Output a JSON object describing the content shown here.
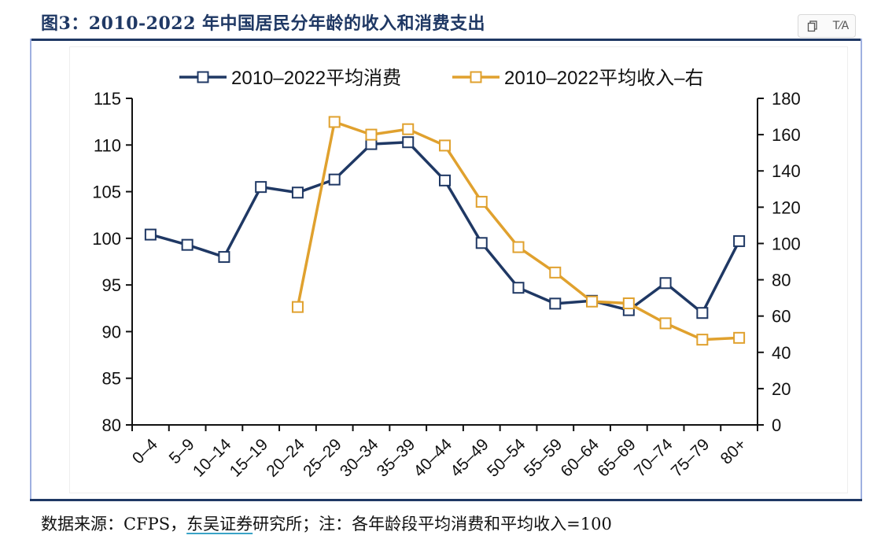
{
  "figure": {
    "title": "图3：2010-2022 年中国居民分年龄的收入和消费支出",
    "source_prefix": "数据来源：CFPS，",
    "source_link": "东吴证券",
    "source_suffix": "研究所；注：各年龄段平均消费和平均收入=100"
  },
  "toolbar": {
    "copy_icon": "copy-icon",
    "translate_icon": "translate-icon",
    "translate_label": "T⁄A"
  },
  "colors": {
    "consumption": "#1f3864",
    "income": "#e0a12e",
    "axis": "#111111"
  },
  "chart_data": {
    "type": "line",
    "categories": [
      "0–4",
      "5–9",
      "10–14",
      "15–19",
      "20–24",
      "25–29",
      "30–34",
      "35–39",
      "40–44",
      "45–49",
      "50–54",
      "55–59",
      "60–64",
      "65–69",
      "70–74",
      "75–79",
      "80+"
    ],
    "series": [
      {
        "name": "2010–2022平均消费",
        "axis": "left",
        "values": [
          100.4,
          99.3,
          98.0,
          105.5,
          104.9,
          106.3,
          110.1,
          110.3,
          106.2,
          99.5,
          94.7,
          93.0,
          93.3,
          92.3,
          95.2,
          92.0,
          99.7
        ]
      },
      {
        "name": "2010–2022平均收入–右",
        "axis": "right",
        "values": [
          null,
          null,
          null,
          null,
          65,
          167,
          160,
          163,
          154,
          123,
          98,
          84,
          68,
          67,
          56,
          47,
          48
        ]
      }
    ],
    "y_left": {
      "min": 80,
      "max": 115,
      "ticks": [
        80,
        85,
        90,
        95,
        100,
        105,
        110,
        115
      ]
    },
    "y_right": {
      "min": 0,
      "max": 180,
      "ticks": [
        0,
        20,
        40,
        60,
        80,
        100,
        120,
        140,
        160,
        180
      ]
    },
    "legend": "top-center",
    "grid": false
  }
}
